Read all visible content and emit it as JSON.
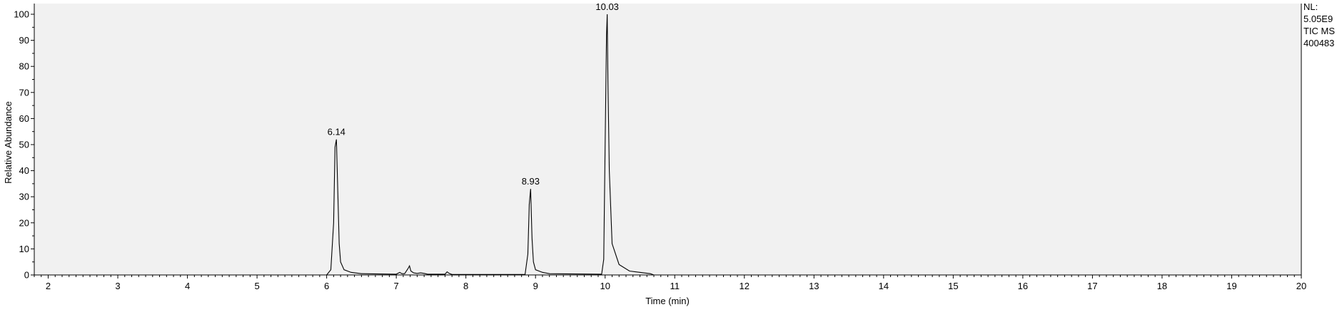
{
  "chart_data": {
    "type": "line",
    "title": "",
    "xlabel": "Time (min)",
    "ylabel": "Relative Abundance",
    "xlim": [
      1.8,
      20
    ],
    "ylim": [
      0,
      100
    ],
    "x_ticks": [
      "2",
      "3",
      "4",
      "5",
      "6",
      "7",
      "8",
      "9",
      "10",
      "11",
      "12",
      "13",
      "14",
      "15",
      "16",
      "17",
      "18",
      "19",
      "20"
    ],
    "y_ticks": [
      "0",
      "10",
      "20",
      "30",
      "40",
      "50",
      "60",
      "70",
      "80",
      "90",
      "100"
    ],
    "grid": false,
    "legend": "none",
    "plot_background": "#f1f1f1",
    "line_color": "#000000",
    "peak_labels": [
      {
        "label": "6.14",
        "x": 6.14,
        "y": 52
      },
      {
        "label": "8.93",
        "x": 8.93,
        "y": 33
      },
      {
        "label": "10.03",
        "x": 10.03,
        "y": 100
      }
    ],
    "info_block": [
      "NL:",
      "5.05E9",
      "TIC  MS",
      "400483"
    ],
    "series": [
      {
        "x": [
          1.8,
          6.0,
          6.06,
          6.1,
          6.12,
          6.14,
          6.16,
          6.18,
          6.2,
          6.25,
          6.35,
          6.5,
          7.0,
          7.05,
          7.08,
          7.12,
          7.17,
          7.19,
          7.21,
          7.25,
          7.3,
          7.35,
          7.4,
          7.45,
          7.7,
          7.73,
          7.76,
          7.8,
          8.85,
          8.89,
          8.91,
          8.93,
          8.95,
          8.97,
          9.0,
          9.1,
          9.2,
          9.95,
          9.98,
          10.0,
          10.02,
          10.03,
          10.04,
          10.06,
          10.1,
          10.2,
          10.35,
          10.65,
          10.7,
          20.0
        ],
        "y": [
          0,
          0,
          2,
          20,
          49,
          52,
          32,
          12,
          5,
          2,
          1,
          0.5,
          0.3,
          1,
          0.5,
          0.5,
          2.5,
          3.5,
          1.5,
          0.8,
          0.6,
          0.8,
          0.6,
          0.3,
          0.3,
          1.2,
          0.6,
          0.2,
          0.2,
          8,
          27,
          33,
          14,
          5,
          2,
          1,
          0.5,
          0.3,
          6,
          50,
          92,
          100,
          75,
          40,
          12,
          4,
          1.5,
          0.5,
          0,
          0
        ]
      }
    ]
  }
}
